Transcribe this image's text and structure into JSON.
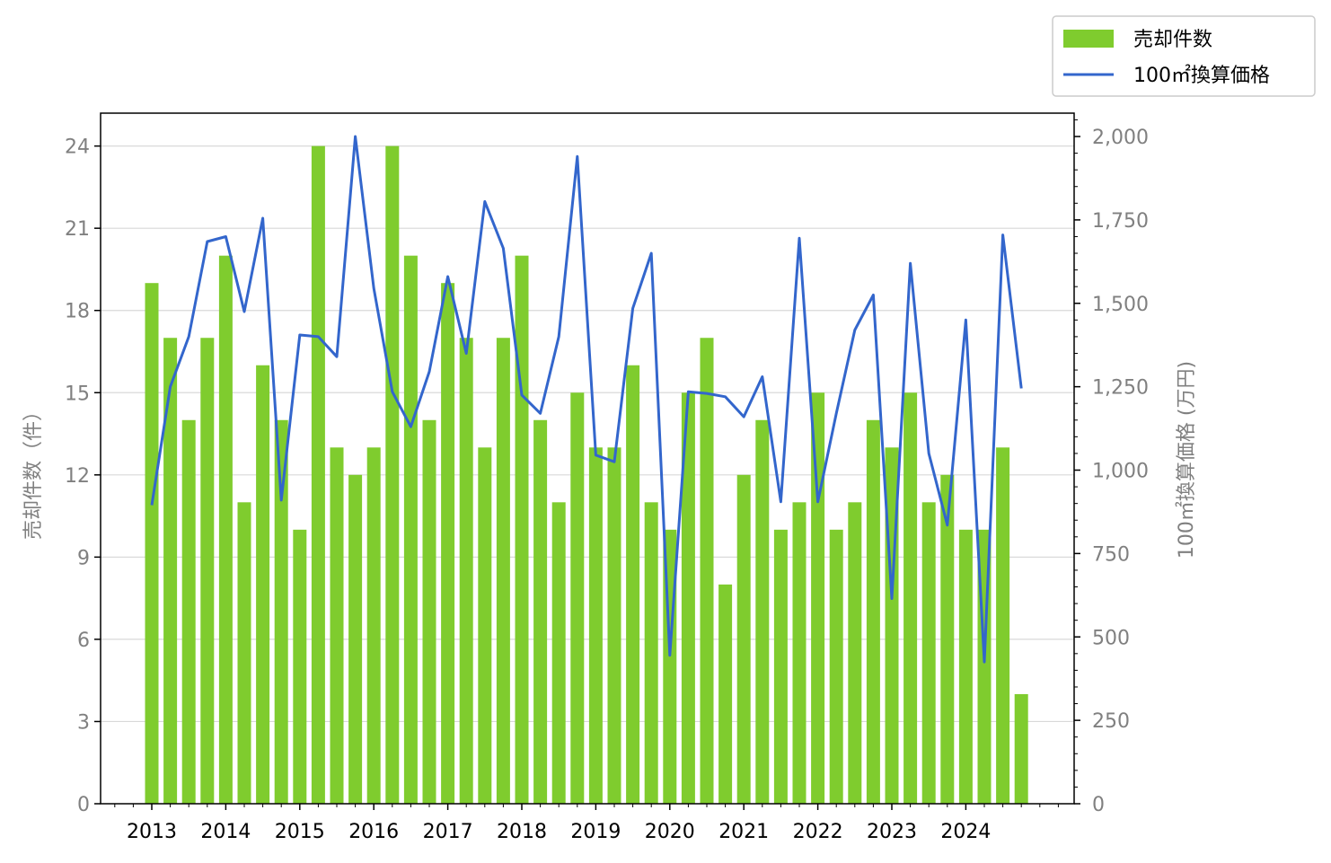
{
  "chart_data": {
    "type": "bar+line",
    "x_labels": [
      "2013",
      "2014",
      "2015",
      "2016",
      "2017",
      "2018",
      "2019",
      "2020",
      "2021",
      "2022",
      "2023",
      "2024"
    ],
    "quarters": [
      "2013Q1",
      "2013Q2",
      "2013Q3",
      "2013Q4",
      "2014Q1",
      "2014Q2",
      "2014Q3",
      "2014Q4",
      "2015Q1",
      "2015Q2",
      "2015Q3",
      "2015Q4",
      "2016Q1",
      "2016Q2",
      "2016Q3",
      "2016Q4",
      "2017Q1",
      "2017Q2",
      "2017Q3",
      "2017Q4",
      "2018Q1",
      "2018Q2",
      "2018Q3",
      "2018Q4",
      "2019Q1",
      "2019Q2",
      "2019Q3",
      "2019Q4",
      "2020Q1",
      "2020Q2",
      "2020Q3",
      "2020Q4",
      "2021Q1",
      "2021Q2",
      "2021Q3",
      "2021Q4",
      "2022Q1",
      "2022Q2",
      "2022Q3",
      "2022Q4",
      "2023Q1",
      "2023Q2",
      "2023Q3",
      "2023Q4",
      "2024Q1",
      "2024Q2",
      "2024Q3",
      "2024Q4"
    ],
    "series": [
      {
        "name": "売却件数",
        "type": "bar",
        "axis": "left",
        "color": "#7fcc2e",
        "values": [
          19,
          17,
          14,
          17,
          20,
          11,
          16,
          14,
          10,
          24,
          13,
          12,
          13,
          24,
          20,
          14,
          19,
          17,
          13,
          17,
          20,
          14,
          11,
          15,
          13,
          13,
          16,
          11,
          10,
          15,
          17,
          8,
          12,
          14,
          10,
          11,
          15,
          10,
          11,
          14,
          13,
          15,
          11,
          12,
          10,
          10,
          13,
          4
        ]
      },
      {
        "name": "100㎡換算価格",
        "type": "line",
        "axis": "right",
        "color": "#3366cc",
        "values": [
          895,
          1250,
          1400,
          1685,
          1700,
          1475,
          1755,
          910,
          1405,
          1400,
          1340,
          2000,
          1545,
          1235,
          1130,
          1295,
          1580,
          1350,
          1805,
          1665,
          1225,
          1170,
          1400,
          1940,
          1045,
          1025,
          1485,
          1650,
          445,
          1235,
          1230,
          1220,
          1160,
          1280,
          905,
          1695,
          905,
          1170,
          1420,
          1525,
          615,
          1620,
          1050,
          835,
          1450,
          425,
          1705,
          1245
        ]
      }
    ],
    "y_left": {
      "label": "売却件数（件）",
      "ylim": [
        0,
        25.2
      ],
      "ticks": [
        "0",
        "3",
        "6",
        "9",
        "12",
        "15",
        "18",
        "21",
        "24"
      ]
    },
    "y_right": {
      "label": "100㎡換算価格 (万円)",
      "ylim": [
        0,
        2070
      ],
      "ticks": [
        "0",
        "250",
        "500",
        "750",
        "1,000",
        "1,250",
        "1,500",
        "1,750",
        "2,000"
      ]
    },
    "grid": "horizontal",
    "legend": {
      "position": "top-right",
      "entries": [
        "売却件数",
        "100㎡換算価格"
      ]
    }
  }
}
